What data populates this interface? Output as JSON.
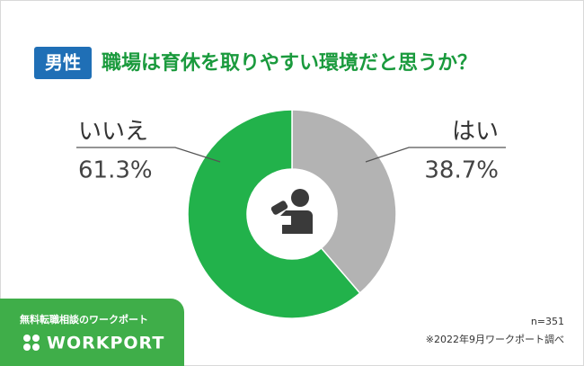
{
  "header": {
    "badge": "男性"
  },
  "chart_data": {
    "type": "donut",
    "title": "職場は育休を取りやすい環境だと思うか？",
    "categories": [
      "はい",
      "いいえ"
    ],
    "values": [
      38.7,
      61.3
    ],
    "value_labels": [
      "38.7%",
      "61.3%"
    ],
    "colors": [
      "#b3b3b3",
      "#22b24b"
    ]
  },
  "footer": {
    "tagline": "無料転職相談のワークポート",
    "logo": "WORKPORT",
    "sample": "n=351",
    "source": "※2022年9月ワークポート調べ"
  }
}
